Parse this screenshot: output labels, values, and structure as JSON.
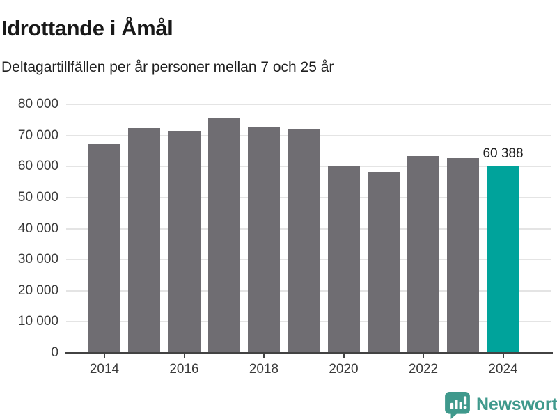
{
  "header": {
    "title": "Idrottande i Åmål",
    "subtitle": "Deltagartillfällen per år personer mellan 7 och 25 år"
  },
  "chart_data": {
    "type": "bar",
    "title": "Idrottande i Åmål",
    "subtitle": "Deltagartillfällen per år personer mellan 7 och 25 år",
    "categories": [
      2014,
      2015,
      2016,
      2017,
      2018,
      2019,
      2020,
      2021,
      2022,
      2023,
      2024
    ],
    "values": [
      67200,
      72400,
      71400,
      75600,
      72500,
      71900,
      60200,
      58200,
      63500,
      62700,
      60388
    ],
    "highlight_index": 10,
    "highlight_label": "60 388",
    "ylim": [
      0,
      80000
    ],
    "yticks": {
      "values": [
        0,
        10000,
        20000,
        30000,
        40000,
        50000,
        60000,
        70000,
        80000
      ],
      "labels": [
        "0",
        "10 000",
        "20 000",
        "30 000",
        "40 000",
        "50 000",
        "60 000",
        "70 000",
        "80 000"
      ]
    },
    "xticks": [
      2014,
      2016,
      2018,
      2020,
      2022,
      2024
    ],
    "xtick_labels": [
      "2014",
      "2016",
      "2018",
      "2020",
      "2022",
      "2024"
    ],
    "grid": true,
    "legend": "none",
    "bar_color": "#6F6D72",
    "highlight_color": "#00A39B"
  },
  "footer": {
    "brand": "Newsworthy",
    "brand_color": "#3F998C",
    "logo_icon": "newsworthy-bar-chart-speech-bubble-icon"
  }
}
